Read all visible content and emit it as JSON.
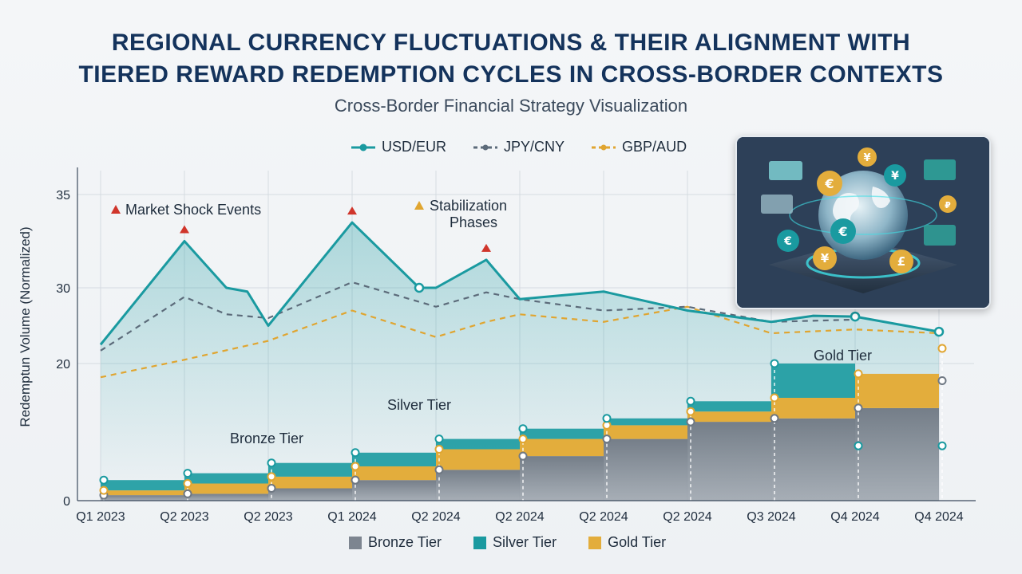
{
  "title": {
    "line1": "REGIONAL CURRENCY FLUCTUATIONS & THEIR ALIGNMENT WITH",
    "line2": "TIERED REWARD REDEMPTION CYCLES IN CROSS-BORDER CONTEXTS"
  },
  "subtitle": "Cross-Border Financial Strategy Visualization",
  "legend_top": [
    {
      "label": "USD/EUR",
      "color": "#1a9aa0",
      "style": "solid"
    },
    {
      "label": "JPY/CNY",
      "color": "#5c6b7a",
      "style": "dashed"
    },
    {
      "label": "GBP/AUD",
      "color": "#e0a530",
      "style": "dashed"
    }
  ],
  "legend_bottom": [
    {
      "label": "Bronze Tier",
      "color": "#7d8590"
    },
    {
      "label": "Silver Tier",
      "color": "#1a9aa0"
    },
    {
      "label": "Gold Tier",
      "color": "#e3ad3c"
    }
  ],
  "annotations": {
    "market_shock": "Market Shock Events",
    "stabilization_line1": "Stabilization",
    "stabilization_line2": "Phases",
    "bronze": "Bronze Tier",
    "silver": "Silver Tier",
    "gold": "Gold Tier"
  },
  "chart_data": {
    "type": "line",
    "ylabel": "Redemptun Volume (Normalized)",
    "xlabel": "",
    "y_ticks": [
      "35",
      "30",
      "20",
      "0"
    ],
    "categories": [
      "Q1 2023",
      "Q2 2023",
      "Q2 2023",
      "Q1 2024",
      "Q2 2024",
      "Q2 2024",
      "Q2 2024",
      "Q2 2024",
      "Q3 2024",
      "Q4 2024",
      "Q4 2024"
    ],
    "series": [
      {
        "name": "USD/EUR",
        "x": [
          0,
          1.0,
          1.5,
          1.75,
          2.0,
          3.0,
          3.8,
          4.0,
          4.6,
          5.0,
          6.0,
          7.0,
          8.0,
          8.5,
          9.0,
          10.0
        ],
        "y": [
          22.5,
          32.5,
          30.0,
          29.5,
          25.0,
          33.5,
          30.0,
          30.0,
          31.5,
          28.5,
          29.5,
          27.0,
          25.5,
          26.3,
          26.2,
          24.2
        ]
      },
      {
        "name": "JPY/CNY",
        "x": [
          0,
          1.0,
          1.5,
          2.0,
          3.0,
          4.0,
          4.6,
          5.0,
          6.0,
          7.0,
          8.0,
          9.0
        ],
        "y": [
          21.7,
          28.8,
          26.5,
          26.0,
          30.3,
          27.5,
          29.4,
          28.5,
          27.0,
          27.5,
          25.5,
          25.8
        ]
      },
      {
        "name": "GBP/AUD",
        "x": [
          0,
          1.0,
          2.0,
          3.0,
          4.0,
          4.6,
          5.0,
          6.0,
          7.0,
          8.0,
          9.0,
          10.0
        ],
        "y": [
          18.0,
          20.5,
          23.0,
          27.0,
          23.5,
          25.5,
          26.5,
          25.5,
          27.5,
          24.0,
          24.5,
          24.0
        ]
      },
      {
        "name": "Bronze Tier",
        "x": [
          0,
          1,
          2,
          3,
          4,
          5,
          6,
          7,
          8,
          9,
          10
        ],
        "values": [
          0.8,
          1.0,
          1.8,
          3.0,
          4.5,
          6.5,
          9.0,
          11.5,
          12.0,
          13.5,
          17.5
        ]
      },
      {
        "name": "Silver Tier",
        "x": [
          0,
          1,
          2,
          3,
          4,
          5,
          6,
          7,
          8,
          9,
          10
        ],
        "values": [
          3.0,
          4.0,
          5.5,
          7.0,
          9.0,
          10.5,
          12.0,
          14.5,
          20.0,
          8.0,
          8.0
        ]
      },
      {
        "name": "Gold Tier",
        "x": [
          0,
          1,
          2,
          3,
          4,
          5,
          6,
          7,
          8,
          9,
          10
        ],
        "values": [
          1.5,
          2.5,
          3.5,
          5.0,
          7.5,
          9.0,
          11.0,
          13.0,
          15.0,
          18.5,
          22.0
        ]
      }
    ],
    "markers": {
      "shock_x": [
        1.0,
        3.0,
        4.6
      ],
      "stabilization_x": [
        4.1
      ]
    },
    "grid": true,
    "legend_position": "top"
  }
}
